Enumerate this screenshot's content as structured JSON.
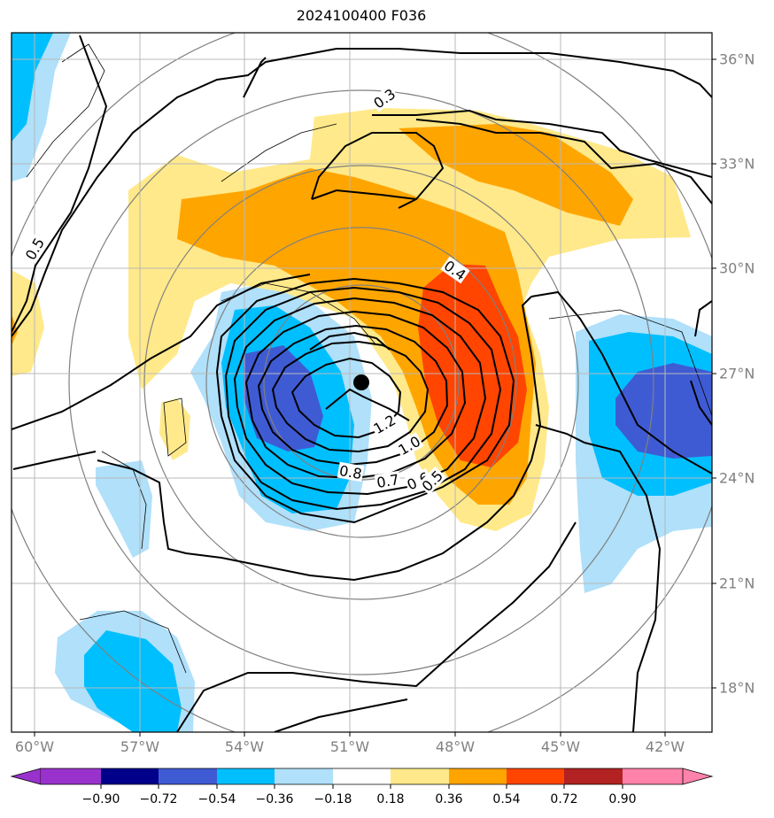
{
  "title": "2024100400 F036",
  "map": {
    "lon_labels": [
      "60°W",
      "57°W",
      "54°W",
      "51°W",
      "48°W",
      "45°W",
      "42°W"
    ],
    "lat_labels": [
      "36°N",
      "33°N",
      "30°N",
      "27°N",
      "24°N",
      "21°N",
      "18°N"
    ],
    "center_marker": "storm-center-dot"
  },
  "contour_labels": [
    "0.3",
    "0.5",
    "0.4",
    "1.2",
    "1.0",
    "0.8",
    "0.7",
    "0.6",
    "0.5"
  ],
  "colorbar": {
    "ticks": [
      "−0.90",
      "−0.72",
      "−0.54",
      "−0.36",
      "−0.18",
      "0.18",
      "0.36",
      "0.54",
      "0.72",
      "0.90"
    ],
    "colors": [
      "#9932cc",
      "#00008b",
      "#3f5bd4",
      "#00bfff",
      "#b0e0fa",
      "#ffffff",
      "#ffe98a",
      "#ffa500",
      "#ff4500",
      "#b22222",
      "#ff82ab"
    ]
  },
  "fill_colors": {
    "pos_1": "#ffe98a",
    "pos_2": "#ffa500",
    "pos_3": "#ff4500",
    "neg_1": "#b0e0fa",
    "neg_2": "#00bfff",
    "neg_3": "#3f5bd4"
  }
}
